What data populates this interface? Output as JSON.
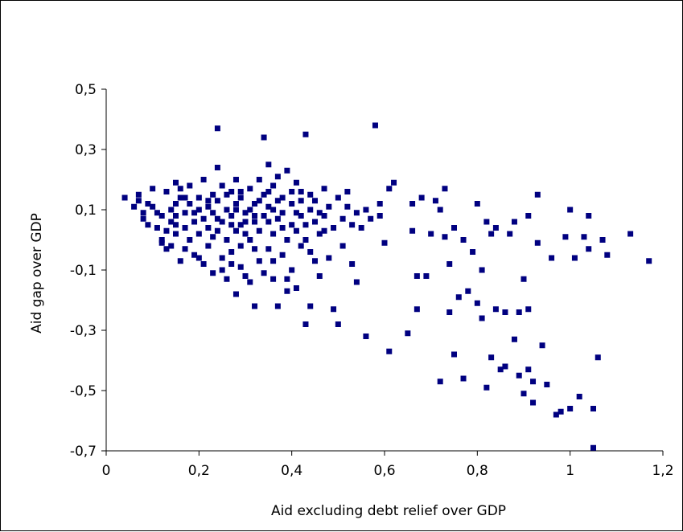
{
  "chart_data": {
    "type": "scatter",
    "title": "",
    "xlabel": "Aid excluding debt relief over GDP",
    "ylabel": "Aid gap over GDP",
    "xlim": [
      0,
      1.2
    ],
    "ylim": [
      -0.7,
      0.5
    ],
    "x_ticks": [
      0,
      0.2,
      0.4,
      0.6,
      0.8,
      1,
      1.2
    ],
    "x_tick_labels": [
      "0",
      "0,2",
      "0,4",
      "0,6",
      "0,8",
      "1",
      "1,2"
    ],
    "y_ticks": [
      0.5,
      0.3,
      0.1,
      -0.1,
      -0.3,
      -0.5,
      -0.7
    ],
    "y_tick_labels": [
      "0,5",
      "0,3",
      "0,1",
      "-0,1",
      "-0,3",
      "-0,5",
      "-0,7"
    ],
    "grid": false,
    "legend": "none",
    "marker_color": "#000080",
    "marker": "square",
    "series": [
      {
        "points": [
          [
            0.04,
            0.14
          ],
          [
            0.06,
            0.11
          ],
          [
            0.07,
            0.15
          ],
          [
            0.07,
            0.13
          ],
          [
            0.08,
            0.09
          ],
          [
            0.08,
            0.07
          ],
          [
            0.09,
            0.05
          ],
          [
            0.1,
            0.11
          ],
          [
            0.1,
            0.17
          ],
          [
            0.11,
            0.04
          ],
          [
            0.12,
            0.08
          ],
          [
            0.12,
            0.0
          ],
          [
            0.12,
            -0.01
          ],
          [
            0.13,
            0.16
          ],
          [
            0.13,
            0.03
          ],
          [
            0.14,
            0.1
          ],
          [
            0.14,
            0.06
          ],
          [
            0.14,
            -0.02
          ],
          [
            0.15,
            0.12
          ],
          [
            0.15,
            0.19
          ],
          [
            0.15,
            0.02
          ],
          [
            0.15,
            0.08
          ],
          [
            0.16,
            -0.07
          ],
          [
            0.16,
            0.14
          ],
          [
            0.16,
            0.17
          ],
          [
            0.17,
            0.04
          ],
          [
            0.17,
            0.09
          ],
          [
            0.17,
            -0.03
          ],
          [
            0.18,
            0.12
          ],
          [
            0.18,
            0.0
          ],
          [
            0.18,
            0.18
          ],
          [
            0.19,
            0.06
          ],
          [
            0.19,
            -0.05
          ],
          [
            0.2,
            0.1
          ],
          [
            0.2,
            0.14
          ],
          [
            0.2,
            0.02
          ],
          [
            0.21,
            -0.08
          ],
          [
            0.21,
            0.07
          ],
          [
            0.21,
            0.2
          ],
          [
            0.22,
            0.11
          ],
          [
            0.22,
            -0.02
          ],
          [
            0.22,
            0.04
          ],
          [
            0.23,
            0.15
          ],
          [
            0.23,
            -0.11
          ],
          [
            0.23,
            0.09
          ],
          [
            0.24,
            0.24
          ],
          [
            0.24,
            0.03
          ],
          [
            0.24,
            0.13
          ],
          [
            0.24,
            0.37
          ],
          [
            0.25,
            -0.06
          ],
          [
            0.25,
            0.18
          ],
          [
            0.25,
            0.06
          ],
          [
            0.26,
            -0.13
          ],
          [
            0.26,
            0.1
          ],
          [
            0.26,
            0.0
          ],
          [
            0.27,
            0.16
          ],
          [
            0.27,
            -0.04
          ],
          [
            0.27,
            0.08
          ],
          [
            0.28,
            -0.18
          ],
          [
            0.28,
            0.12
          ],
          [
            0.28,
            0.2
          ],
          [
            0.29,
            0.05
          ],
          [
            0.29,
            -0.09
          ],
          [
            0.29,
            0.14
          ],
          [
            0.3,
            0.02
          ],
          [
            0.3,
            0.09
          ],
          [
            0.3,
            -0.12
          ],
          [
            0.31,
            0.17
          ],
          [
            0.31,
            0.0
          ],
          [
            0.31,
            0.1
          ],
          [
            0.32,
            -0.22
          ],
          [
            0.32,
            0.06
          ],
          [
            0.32,
            0.12
          ],
          [
            0.33,
            -0.07
          ],
          [
            0.33,
            0.2
          ],
          [
            0.33,
            0.03
          ],
          [
            0.34,
            0.34
          ],
          [
            0.34,
            0.15
          ],
          [
            0.34,
            0.08
          ],
          [
            0.35,
            -0.03
          ],
          [
            0.35,
            0.25
          ],
          [
            0.35,
            0.11
          ],
          [
            0.36,
            0.02
          ],
          [
            0.36,
            0.18
          ],
          [
            0.36,
            -0.13
          ],
          [
            0.37,
            0.21
          ],
          [
            0.37,
            0.07
          ],
          [
            0.37,
            -0.22
          ],
          [
            0.38,
            0.14
          ],
          [
            0.38,
            -0.05
          ],
          [
            0.38,
            0.09
          ],
          [
            0.39,
            0.23
          ],
          [
            0.39,
            0.0
          ],
          [
            0.39,
            -0.17
          ],
          [
            0.4,
            0.12
          ],
          [
            0.4,
            0.05
          ],
          [
            0.4,
            -0.1
          ],
          [
            0.41,
            0.19
          ],
          [
            0.41,
            0.03
          ],
          [
            0.41,
            -0.16
          ],
          [
            0.42,
            0.08
          ],
          [
            0.42,
            0.16
          ],
          [
            0.43,
            0.35
          ],
          [
            0.43,
            0.0
          ],
          [
            0.43,
            -0.28
          ],
          [
            0.44,
            0.1
          ],
          [
            0.44,
            -0.04
          ],
          [
            0.44,
            -0.22
          ],
          [
            0.45,
            0.06
          ],
          [
            0.45,
            0.13
          ],
          [
            0.46,
            0.02
          ],
          [
            0.46,
            -0.12
          ],
          [
            0.47,
            0.17
          ],
          [
            0.47,
            0.08
          ],
          [
            0.48,
            -0.06
          ],
          [
            0.48,
            0.11
          ],
          [
            0.49,
            -0.23
          ],
          [
            0.49,
            0.04
          ],
          [
            0.5,
            0.14
          ],
          [
            0.5,
            -0.28
          ],
          [
            0.51,
            0.07
          ],
          [
            0.51,
            -0.02
          ],
          [
            0.52,
            0.11
          ],
          [
            0.52,
            0.16
          ],
          [
            0.53,
            -0.08
          ],
          [
            0.53,
            0.05
          ],
          [
            0.54,
            0.09
          ],
          [
            0.54,
            -0.14
          ],
          [
            0.55,
            0.04
          ],
          [
            0.56,
            0.1
          ],
          [
            0.56,
            -0.32
          ],
          [
            0.57,
            0.07
          ],
          [
            0.58,
            0.38
          ],
          [
            0.59,
            0.12
          ],
          [
            0.59,
            0.08
          ],
          [
            0.6,
            -0.01
          ],
          [
            0.61,
            0.17
          ],
          [
            0.61,
            -0.37
          ],
          [
            0.62,
            0.19
          ],
          [
            0.65,
            -0.31
          ],
          [
            0.66,
            0.12
          ],
          [
            0.66,
            0.03
          ],
          [
            0.67,
            -0.23
          ],
          [
            0.67,
            -0.12
          ],
          [
            0.68,
            0.14
          ],
          [
            0.69,
            -0.12
          ],
          [
            0.7,
            0.02
          ],
          [
            0.71,
            0.13
          ],
          [
            0.72,
            -0.47
          ],
          [
            0.72,
            0.1
          ],
          [
            0.73,
            0.01
          ],
          [
            0.73,
            0.17
          ],
          [
            0.74,
            -0.24
          ],
          [
            0.74,
            -0.08
          ],
          [
            0.75,
            -0.38
          ],
          [
            0.75,
            0.04
          ],
          [
            0.76,
            -0.19
          ],
          [
            0.77,
            -0.46
          ],
          [
            0.77,
            0.0
          ],
          [
            0.78,
            -0.17
          ],
          [
            0.79,
            -0.04
          ],
          [
            0.8,
            -0.21
          ],
          [
            0.8,
            0.12
          ],
          [
            0.81,
            -0.26
          ],
          [
            0.81,
            -0.1
          ],
          [
            0.82,
            -0.49
          ],
          [
            0.82,
            0.06
          ],
          [
            0.83,
            -0.39
          ],
          [
            0.83,
            0.02
          ],
          [
            0.84,
            -0.23
          ],
          [
            0.84,
            0.04
          ],
          [
            0.85,
            -0.43
          ],
          [
            0.86,
            -0.42
          ],
          [
            0.86,
            -0.24
          ],
          [
            0.87,
            0.02
          ],
          [
            0.88,
            -0.33
          ],
          [
            0.88,
            0.06
          ],
          [
            0.89,
            -0.45
          ],
          [
            0.89,
            -0.24
          ],
          [
            0.9,
            -0.51
          ],
          [
            0.9,
            -0.13
          ],
          [
            0.91,
            -0.43
          ],
          [
            0.91,
            -0.23
          ],
          [
            0.91,
            0.08
          ],
          [
            0.92,
            -0.54
          ],
          [
            0.92,
            -0.47
          ],
          [
            0.93,
            0.15
          ],
          [
            0.93,
            -0.01
          ],
          [
            0.94,
            -0.35
          ],
          [
            0.95,
            -0.48
          ],
          [
            0.96,
            -0.06
          ],
          [
            0.97,
            -0.58
          ],
          [
            0.98,
            -0.57
          ],
          [
            0.99,
            0.01
          ],
          [
            1.0,
            -0.56
          ],
          [
            1.0,
            0.1
          ],
          [
            1.01,
            -0.06
          ],
          [
            1.02,
            -0.52
          ],
          [
            1.03,
            0.01
          ],
          [
            1.04,
            -0.03
          ],
          [
            1.04,
            0.08
          ],
          [
            1.05,
            -0.69
          ],
          [
            1.05,
            -0.56
          ],
          [
            1.06,
            -0.39
          ],
          [
            1.07,
            0.0
          ],
          [
            1.08,
            -0.05
          ],
          [
            1.13,
            0.02
          ],
          [
            1.17,
            -0.07
          ],
          [
            0.09,
            0.12
          ],
          [
            0.11,
            0.09
          ],
          [
            0.13,
            -0.03
          ],
          [
            0.15,
            0.05
          ],
          [
            0.17,
            0.14
          ],
          [
            0.19,
            0.09
          ],
          [
            0.2,
            -0.06
          ],
          [
            0.22,
            0.13
          ],
          [
            0.23,
            0.01
          ],
          [
            0.24,
            0.07
          ],
          [
            0.25,
            -0.1
          ],
          [
            0.26,
            0.15
          ],
          [
            0.27,
            0.05
          ],
          [
            0.27,
            -0.08
          ],
          [
            0.28,
            0.1
          ],
          [
            0.28,
            0.03
          ],
          [
            0.29,
            0.16
          ],
          [
            0.29,
            -0.02
          ],
          [
            0.3,
            0.06
          ],
          [
            0.31,
            -0.14
          ],
          [
            0.32,
            0.08
          ],
          [
            0.32,
            -0.03
          ],
          [
            0.33,
            0.13
          ],
          [
            0.34,
            -0.11
          ],
          [
            0.35,
            0.06
          ],
          [
            0.35,
            0.16
          ],
          [
            0.36,
            0.1
          ],
          [
            0.36,
            -0.07
          ],
          [
            0.37,
            0.13
          ],
          [
            0.38,
            0.04
          ],
          [
            0.39,
            -0.13
          ],
          [
            0.4,
            0.16
          ],
          [
            0.41,
            0.09
          ],
          [
            0.42,
            -0.02
          ],
          [
            0.42,
            0.13
          ],
          [
            0.43,
            0.05
          ],
          [
            0.44,
            0.15
          ],
          [
            0.45,
            -0.07
          ],
          [
            0.46,
            0.09
          ],
          [
            0.47,
            0.03
          ]
        ]
      }
    ]
  }
}
